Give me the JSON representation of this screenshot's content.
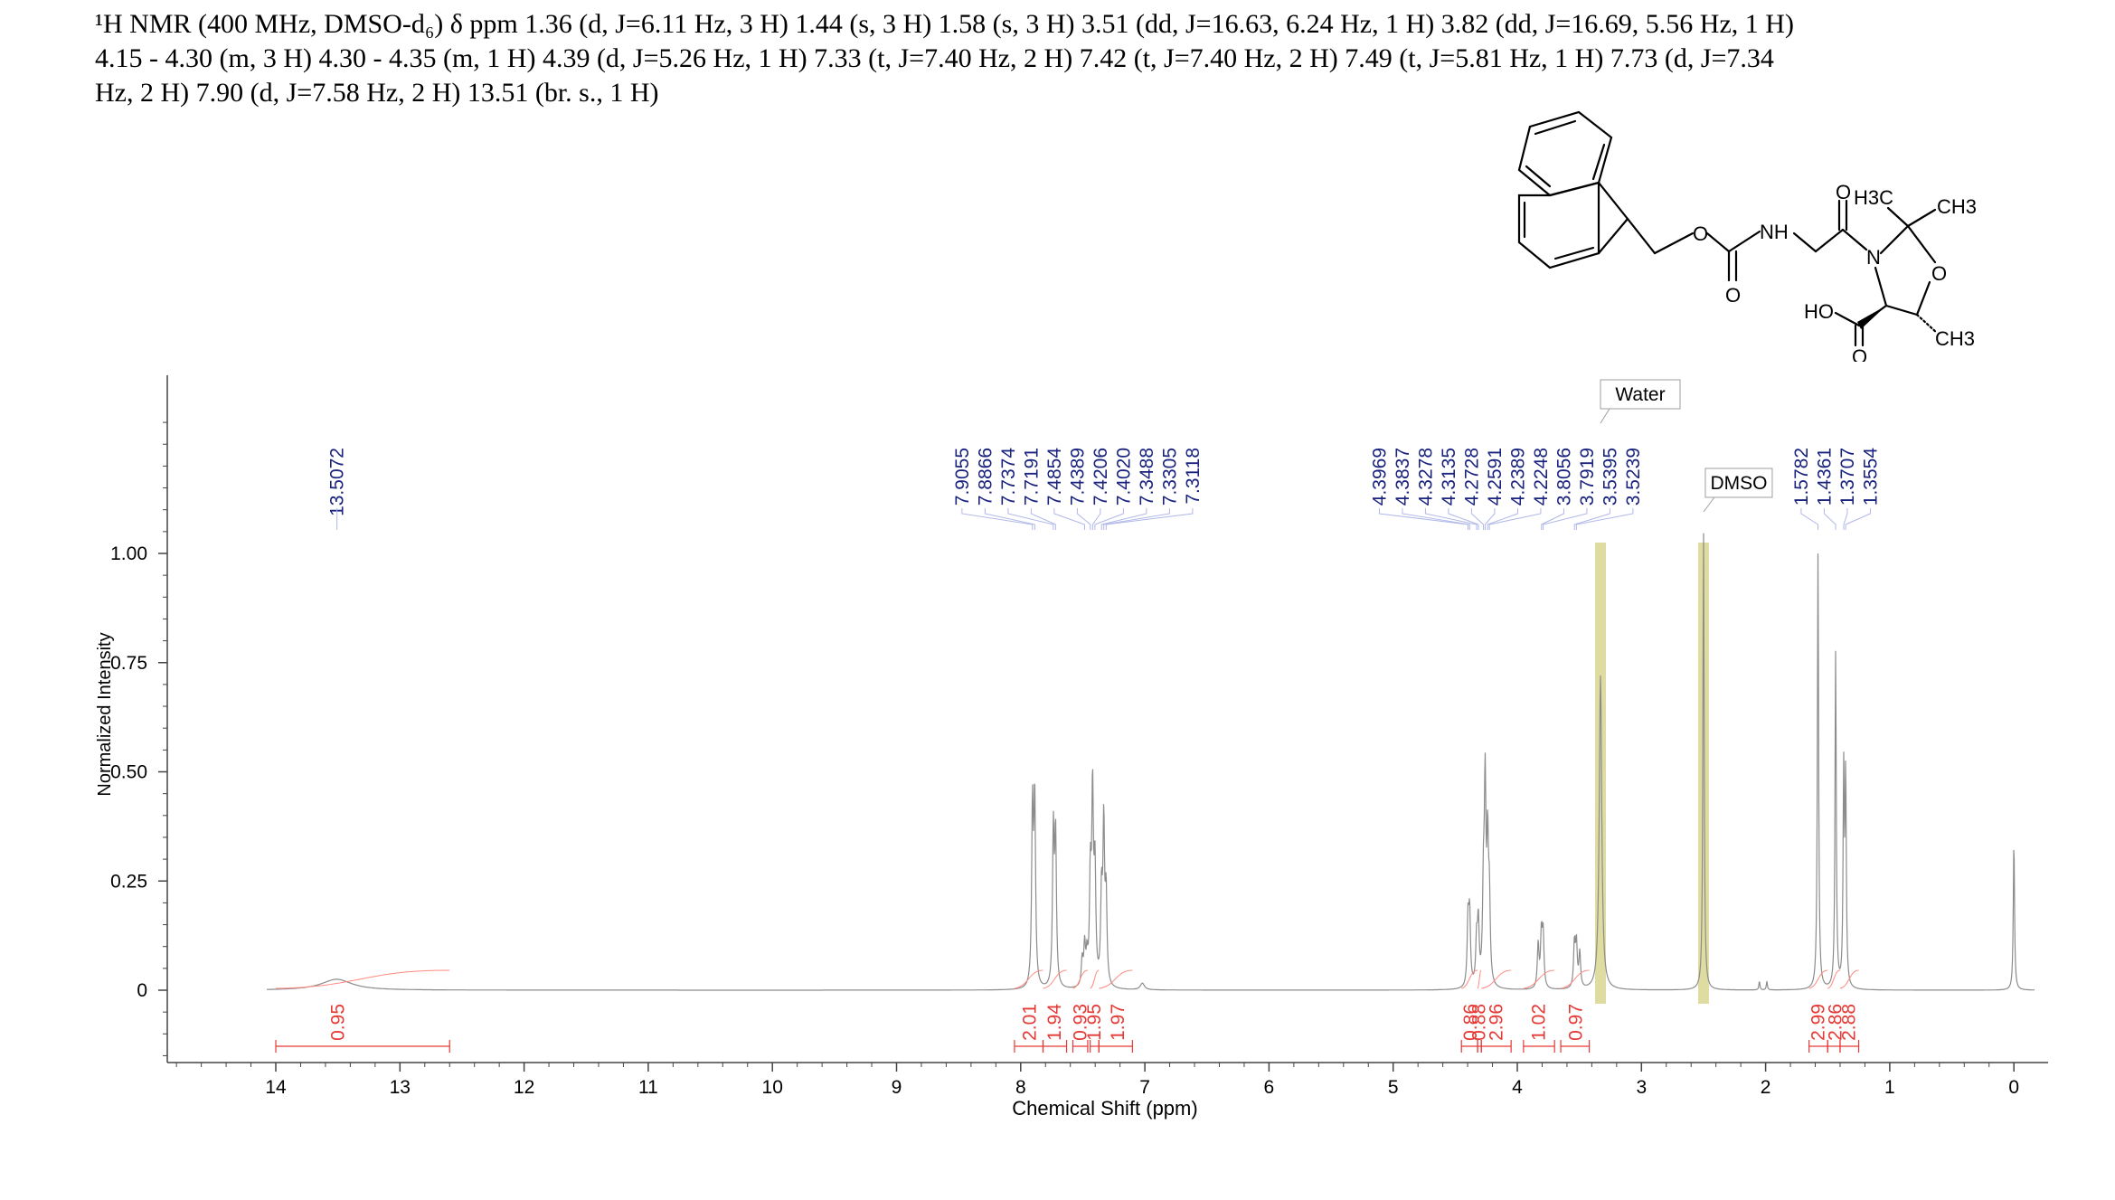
{
  "header": {
    "line1": "¹H NMR (400 MHz, DMSO-d₆) δ ppm 1.36 (d, J=6.11 Hz, 3 H) 1.44 (s, 3 H) 1.58 (s, 3 H) 3.51 (dd, J=16.63, 6.24 Hz, 1 H) 3.82 (dd, J=16.69, 5.56 Hz, 1 H)",
    "line2": "4.15 - 4.30 (m, 3 H) 4.30 - 4.35 (m, 1 H) 4.39 (d, J=5.26 Hz, 1 H) 7.33 (t, J=7.40 Hz, 2 H) 7.42 (t, J=7.40 Hz, 2 H) 7.49 (t, J=5.81 Hz, 1 H) 7.73 (d, J=7.34",
    "line3": "Hz, 2 H) 7.90 (d, J=7.58 Hz, 2 H) 13.51 (br. s., 1 H)"
  },
  "molecule": {
    "labels": {
      "o_ether": "O",
      "o_carbonyl1": "O",
      "nh": "NH",
      "o_carbonyl2": "O",
      "n_ring": "N",
      "o_ring": "O",
      "ho": "HO",
      "o_acid": "O",
      "h3c": "H3C",
      "ch3_top": "CH3",
      "ch3_bottom": "CH3"
    }
  },
  "chart_data": {
    "type": "line",
    "xlabel": "Chemical Shift (ppm)",
    "ylabel": "Normalized Intensity",
    "xlim": [
      15.0,
      -0.2
    ],
    "ylim": [
      -0.15,
      1.4
    ],
    "xticks": [
      14,
      13,
      12,
      11,
      10,
      9,
      8,
      7,
      6,
      5,
      4,
      3,
      2,
      1,
      0
    ],
    "yticks": [
      {
        "v": 1.0,
        "label": "1.00"
      },
      {
        "v": 0.75,
        "label": "0.75"
      },
      {
        "v": 0.5,
        "label": "0.50"
      },
      {
        "v": 0.25,
        "label": "0.25"
      },
      {
        "v": 0.0,
        "label": "0"
      }
    ],
    "peaks": [
      {
        "x": 13.51,
        "h": 0.025,
        "w": 0.15
      },
      {
        "x": 7.905,
        "h": 0.4,
        "w": 0.008
      },
      {
        "x": 7.887,
        "h": 0.42,
        "w": 0.008
      },
      {
        "x": 7.737,
        "h": 0.35,
        "w": 0.008
      },
      {
        "x": 7.719,
        "h": 0.34,
        "w": 0.008
      },
      {
        "x": 7.505,
        "h": 0.06,
        "w": 0.008
      },
      {
        "x": 7.485,
        "h": 0.09,
        "w": 0.008
      },
      {
        "x": 7.466,
        "h": 0.06,
        "w": 0.008
      },
      {
        "x": 7.439,
        "h": 0.24,
        "w": 0.008
      },
      {
        "x": 7.421,
        "h": 0.43,
        "w": 0.008
      },
      {
        "x": 7.402,
        "h": 0.26,
        "w": 0.008
      },
      {
        "x": 7.349,
        "h": 0.2,
        "w": 0.008
      },
      {
        "x": 7.331,
        "h": 0.36,
        "w": 0.008
      },
      {
        "x": 7.312,
        "h": 0.2,
        "w": 0.008
      },
      {
        "x": 7.02,
        "h": 0.015,
        "w": 0.02
      },
      {
        "x": 4.397,
        "h": 0.15,
        "w": 0.008
      },
      {
        "x": 4.384,
        "h": 0.16,
        "w": 0.008
      },
      {
        "x": 4.328,
        "h": 0.1,
        "w": 0.008
      },
      {
        "x": 4.314,
        "h": 0.14,
        "w": 0.008
      },
      {
        "x": 4.273,
        "h": 0.2,
        "w": 0.008
      },
      {
        "x": 4.259,
        "h": 0.44,
        "w": 0.008
      },
      {
        "x": 4.239,
        "h": 0.3,
        "w": 0.008
      },
      {
        "x": 4.225,
        "h": 0.18,
        "w": 0.008
      },
      {
        "x": 3.832,
        "h": 0.1,
        "w": 0.008
      },
      {
        "x": 3.806,
        "h": 0.12,
        "w": 0.008
      },
      {
        "x": 3.792,
        "h": 0.12,
        "w": 0.008
      },
      {
        "x": 3.54,
        "h": 0.1,
        "w": 0.008
      },
      {
        "x": 3.524,
        "h": 0.1,
        "w": 0.008
      },
      {
        "x": 3.497,
        "h": 0.08,
        "w": 0.008
      },
      {
        "x": 3.33,
        "h": 0.72,
        "w": 0.012
      },
      {
        "x": 2.5,
        "h": 1.05,
        "w": 0.006
      },
      {
        "x": 2.05,
        "h": 0.02,
        "w": 0.005
      },
      {
        "x": 1.99,
        "h": 0.02,
        "w": 0.005
      },
      {
        "x": 1.578,
        "h": 1.0,
        "w": 0.006
      },
      {
        "x": 1.436,
        "h": 0.77,
        "w": 0.006
      },
      {
        "x": 1.371,
        "h": 0.48,
        "w": 0.006
      },
      {
        "x": 1.355,
        "h": 0.47,
        "w": 0.006
      },
      {
        "x": 0.0,
        "h": 0.34,
        "w": 0.006
      }
    ],
    "peak_labels": [
      {
        "group": [
          {
            "text": "13.5072",
            "x": 13.5072
          }
        ]
      },
      {
        "group": [
          {
            "text": "7.9055",
            "x": 7.9055
          },
          {
            "text": "7.8866",
            "x": 7.8866
          },
          {
            "text": "7.7374",
            "x": 7.7374
          },
          {
            "text": "7.7191",
            "x": 7.7191
          },
          {
            "text": "7.4854",
            "x": 7.4854
          },
          {
            "text": "7.4389",
            "x": 7.4389
          },
          {
            "text": "7.4206",
            "x": 7.4206
          },
          {
            "text": "7.4020",
            "x": 7.402
          },
          {
            "text": "7.3488",
            "x": 7.3488
          },
          {
            "text": "7.3305",
            "x": 7.3305
          },
          {
            "text": "7.3118",
            "x": 7.3118
          }
        ]
      },
      {
        "group": [
          {
            "text": "4.3969",
            "x": 4.3969
          },
          {
            "text": "4.3837",
            "x": 4.3837
          },
          {
            "text": "4.3278",
            "x": 4.3278
          },
          {
            "text": "4.3135",
            "x": 4.3135
          },
          {
            "text": "4.2728",
            "x": 4.2728
          },
          {
            "text": "4.2591",
            "x": 4.2591
          },
          {
            "text": "4.2389",
            "x": 4.2389
          },
          {
            "text": "4.2248",
            "x": 4.2248
          },
          {
            "text": "3.8056",
            "x": 3.8056
          },
          {
            "text": "3.7919",
            "x": 3.7919
          },
          {
            "text": "3.5395",
            "x": 3.5395
          },
          {
            "text": "3.5239",
            "x": 3.5239
          }
        ]
      },
      {
        "group": [
          {
            "text": "1.5782",
            "x": 1.5782
          },
          {
            "text": "1.4361",
            "x": 1.4361
          },
          {
            "text": "1.3707",
            "x": 1.3707
          },
          {
            "text": "1.3554",
            "x": 1.3554
          }
        ]
      }
    ],
    "integrals": [
      {
        "text": "0.95",
        "from": 14.0,
        "to": 12.6,
        "x": 13.5
      },
      {
        "text": "2.01",
        "from": 8.05,
        "to": 7.82,
        "x": 7.93
      },
      {
        "text": "1.94",
        "from": 7.82,
        "to": 7.63,
        "x": 7.73
      },
      {
        "text": "0.93",
        "from": 7.58,
        "to": 7.46,
        "x": 7.52
      },
      {
        "text": "1.95",
        "from": 7.44,
        "to": 7.37,
        "x": 7.41
      },
      {
        "text": "1.97",
        "from": 7.37,
        "to": 7.1,
        "x": 7.22
      },
      {
        "text": "0.86",
        "from": 4.45,
        "to": 4.32,
        "x": 4.38
      },
      {
        "text": "0.88",
        "from": 4.32,
        "to": 4.29,
        "x": 4.31
      },
      {
        "text": "2.96",
        "from": 4.29,
        "to": 4.05,
        "x": 4.17
      },
      {
        "text": "1.02",
        "from": 3.95,
        "to": 3.7,
        "x": 3.83
      },
      {
        "text": "0.97",
        "from": 3.65,
        "to": 3.42,
        "x": 3.53
      },
      {
        "text": "2.99",
        "from": 1.65,
        "to": 1.5,
        "x": 1.58
      },
      {
        "text": "2.86",
        "from": 1.5,
        "to": 1.4,
        "x": 1.44
      },
      {
        "text": "2.88",
        "from": 1.4,
        "to": 1.25,
        "x": 1.33
      }
    ],
    "annotations": [
      {
        "text": "Water",
        "x": 3.33
      },
      {
        "text": "DMSO",
        "x": 2.5
      }
    ],
    "solvent_bands": [
      3.33,
      2.5
    ],
    "colors": {
      "spectrum": "#8c8c8c",
      "peak_label": "#1a237e",
      "integral": "#e53935",
      "integral_curve": "#ff8a80",
      "solvent_band": "#d6d38a",
      "axis": "#444444"
    }
  }
}
